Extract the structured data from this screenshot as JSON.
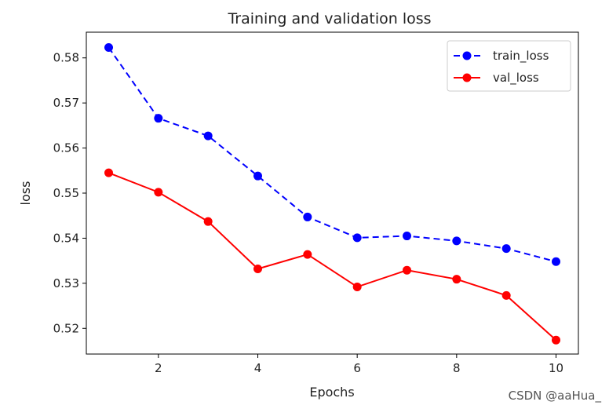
{
  "watermark": "CSDN @aaHua_",
  "chart_data": {
    "type": "line",
    "title": "Training and validation loss",
    "xlabel": "Epochs",
    "ylabel": "loss",
    "x": [
      1,
      2,
      3,
      4,
      5,
      6,
      7,
      8,
      9,
      10
    ],
    "xlim": [
      0.55,
      10.45
    ],
    "ylim": [
      0.5143,
      0.5857
    ],
    "xticks": [
      2,
      4,
      6,
      8,
      10
    ],
    "yticks": [
      0.52,
      0.53,
      0.54,
      0.55,
      0.56,
      0.57,
      0.58
    ],
    "grid": false,
    "legend_position": "top-right",
    "series": [
      {
        "name": "train_loss",
        "color": "#0000ff",
        "style": "dashed",
        "marker": "circle",
        "values": [
          0.5823,
          0.5666,
          0.5627,
          0.5538,
          0.5447,
          0.5401,
          0.5405,
          0.5394,
          0.5377,
          0.5348
        ]
      },
      {
        "name": "val_loss",
        "color": "#ff0000",
        "style": "solid",
        "marker": "circle",
        "values": [
          0.5545,
          0.5502,
          0.5437,
          0.5332,
          0.5364,
          0.5292,
          0.5329,
          0.5309,
          0.5273,
          0.5174
        ]
      }
    ]
  }
}
